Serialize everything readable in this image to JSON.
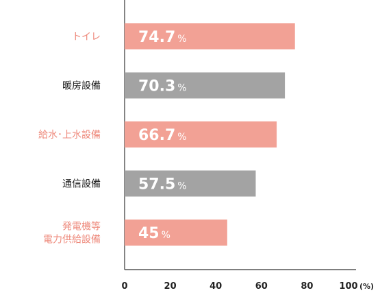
{
  "chart_data": {
    "type": "bar",
    "orientation": "horizontal",
    "categories": [
      [
        "トイレ"
      ],
      [
        "暖房設備"
      ],
      [
        "給水･上水設備"
      ],
      [
        "通信設備"
      ],
      [
        "発電機等",
        "電力供給設備"
      ]
    ],
    "values": [
      74.7,
      70.3,
      66.7,
      57.5,
      45
    ],
    "value_labels": [
      "74.7",
      "70.3",
      "66.7",
      "57.5",
      "45"
    ],
    "value_suffix": "%",
    "colors": [
      "#f2a195",
      "#a3a3a3",
      "#f2a195",
      "#a3a3a3",
      "#f2a195"
    ],
    "label_colors": [
      "#ee8a7c",
      "#222222",
      "#ee8a7c",
      "#222222",
      "#ee8a7c"
    ],
    "xlim": [
      0,
      100
    ],
    "ticks": [
      "0",
      "20",
      "40",
      "60",
      "80",
      "100"
    ],
    "tick_values": [
      0,
      20,
      40,
      60,
      80,
      100
    ],
    "unit_label": "(%)",
    "grid": false
  }
}
